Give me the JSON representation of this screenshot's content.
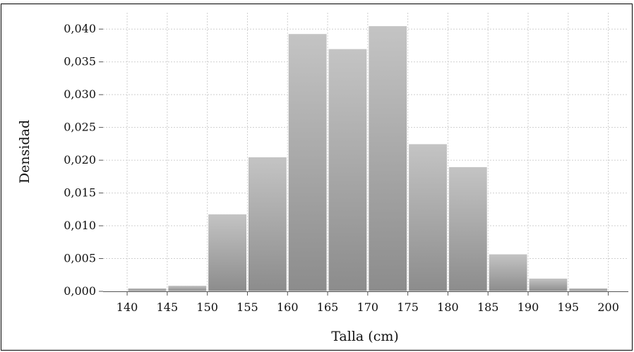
{
  "chart_data": {
    "type": "bar",
    "caption_fragment": "",
    "xlabel": "Talla (cm)",
    "ylabel": "Densidad",
    "bin_edges": [
      140,
      145,
      150,
      155,
      160,
      165,
      170,
      175,
      180,
      185,
      190,
      195,
      200
    ],
    "values": [
      0.0005,
      0.0009,
      0.0118,
      0.0205,
      0.0393,
      0.037,
      0.0405,
      0.0225,
      0.019,
      0.0057,
      0.002,
      0.0005
    ],
    "xlim": [
      137,
      202.5
    ],
    "ylim": [
      0,
      0.0425
    ],
    "x_ticks": [
      "140",
      "145",
      "150",
      "155",
      "160",
      "165",
      "170",
      "175",
      "180",
      "185",
      "190",
      "195",
      "200"
    ],
    "y_ticks": [
      "0,000",
      "0,005",
      "0,010",
      "0,015",
      "0,020",
      "0,025",
      "0,030",
      "0,035",
      "0,040"
    ],
    "grid": true,
    "colors": {
      "bar_top": "#c4c4c4",
      "bar_bottom": "#8c8c8c",
      "grid": "#cfcfcf"
    }
  }
}
